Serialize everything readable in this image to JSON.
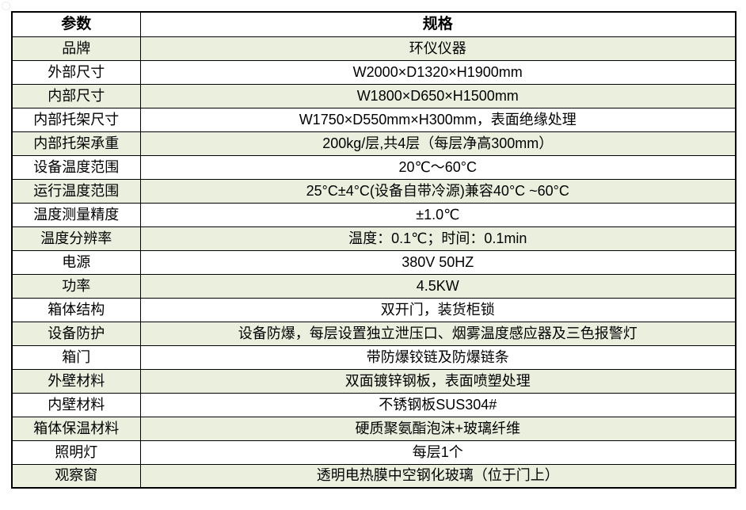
{
  "colors": {
    "row_alt_bg": "#ebf0de",
    "border": "#000000",
    "text": "#000000",
    "page_bg": "#ffffff"
  },
  "table": {
    "header": {
      "param": "参数",
      "spec": "规格"
    },
    "rows": [
      {
        "param": "品牌",
        "spec": "环仪仪器"
      },
      {
        "param": "外部尺寸",
        "spec": "W2000×D1320×H1900mm"
      },
      {
        "param": "内部尺寸",
        "spec": "W1800×D650×H1500mm"
      },
      {
        "param": "内部托架尺寸",
        "spec": "W1750×D550mm×H300mm，表面绝缘处理"
      },
      {
        "param": "内部托架承重",
        "spec": "200kg/层,共4层（每层净高300mm）"
      },
      {
        "param": "设备温度范围",
        "spec": "20℃～60°C"
      },
      {
        "param": "运行温度范围",
        "spec": "25°C±4°C(设备自带冷源)兼容40°C ~60°C"
      },
      {
        "param": "温度测量精度",
        "spec": "±1.0℃"
      },
      {
        "param": "温度分辨率",
        "spec": "温度：0.1℃；时间：0.1min"
      },
      {
        "param": "电源",
        "spec": "380V 50HZ"
      },
      {
        "param": "功率",
        "spec": "4.5KW"
      },
      {
        "param": "箱体结构",
        "spec": "双开门，装货柜锁"
      },
      {
        "param": "设备防护",
        "spec": "设备防爆，每层设置独立泄压口、烟雾温度感应器及三色报警灯"
      },
      {
        "param": "箱门",
        "spec": "带防爆铰链及防爆链条"
      },
      {
        "param": "外壁材料",
        "spec": "双面镀锌钢板，表面喷塑处理"
      },
      {
        "param": "内壁材料",
        "spec": "不锈钢板SUS304#"
      },
      {
        "param": "箱体保温材料",
        "spec": "硬质聚氨酯泡沫+玻璃纤维"
      },
      {
        "param": "照明灯",
        "spec": "每层1个"
      },
      {
        "param": "观察窗",
        "spec": "透明电热膜中空钢化玻璃（位于门上）"
      }
    ]
  }
}
